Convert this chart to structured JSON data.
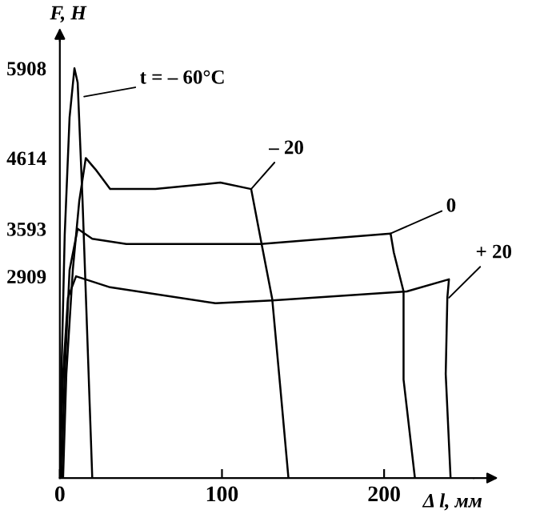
{
  "chart_data": {
    "type": "line",
    "xlabel": "Δ l, мм",
    "ylabel": "F, Н",
    "xlim": [
      0,
      255
    ],
    "ylim": [
      0,
      6300
    ],
    "xticks": [
      0,
      100,
      200
    ],
    "yticks": [
      2909,
      3593,
      4614,
      5908
    ],
    "grid": false,
    "legend": false,
    "marker": "none",
    "line_style": "solid",
    "series": [
      {
        "color": "#000000",
        "x": [
          0,
          1,
          3,
          6,
          9,
          11,
          14,
          17,
          20
        ],
        "values": [
          0,
          1500,
          3500,
          5200,
          5908,
          5700,
          4000,
          2000,
          0
        ]
      },
      {
        "color": "#000000",
        "x": [
          2,
          4,
          8,
          12,
          16,
          22,
          31,
          59,
          99,
          118,
          124,
          131,
          136,
          141
        ],
        "values": [
          0,
          1500,
          3000,
          4000,
          4614,
          4450,
          4167,
          4167,
          4260,
          4167,
          3429,
          2580,
          1300,
          0
        ]
      },
      {
        "color": "#000000",
        "x": [
          1,
          3,
          6,
          11,
          20,
          41,
          124,
          204,
          206,
          212,
          212,
          219
        ],
        "values": [
          0,
          1500,
          3000,
          3593,
          3450,
          3374,
          3374,
          3525,
          3250,
          2690,
          1420,
          0
        ]
      },
      {
        "color": "#000000",
        "x": [
          0,
          2,
          5,
          10,
          31,
          96,
          131,
          214,
          240,
          239,
          238,
          241
        ],
        "values": [
          0,
          1500,
          2600,
          2909,
          2750,
          2520,
          2560,
          2690,
          2865,
          2600,
          1500,
          0
        ]
      }
    ],
    "annotations": [
      {
        "text": "t = – 60°C",
        "x": 15,
        "y": 5500
      },
      {
        "text": "– 20",
        "x": 118,
        "y": 4167
      },
      {
        "text": "0",
        "x": 204,
        "y": 3525
      },
      {
        "text": "+ 20",
        "x": 240,
        "y": 2600
      }
    ]
  }
}
